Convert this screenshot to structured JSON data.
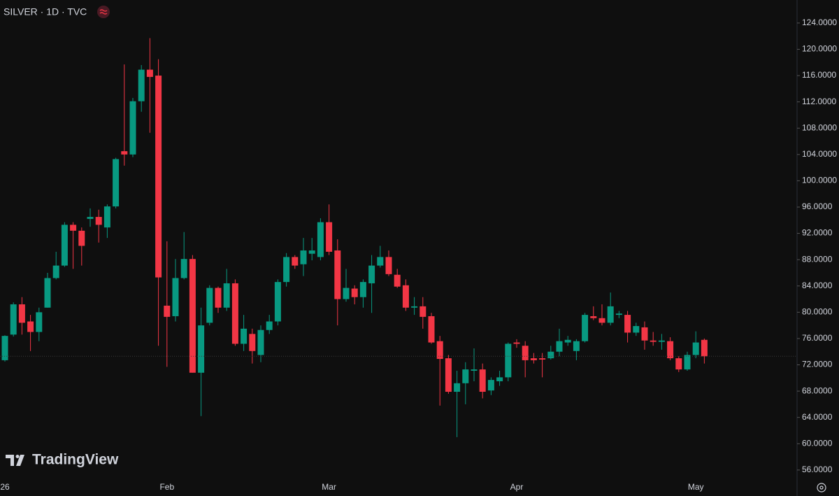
{
  "chart_data": {
    "type": "candlestick",
    "title": "SILVER · 1D · TVC",
    "watermark": "TradingView",
    "up_color": "#089981",
    "down_color": "#f23645",
    "categories": [
      "26",
      null,
      null,
      null,
      null,
      null,
      null,
      null,
      null,
      null,
      null,
      null,
      null,
      null,
      null,
      null,
      null,
      null,
      null,
      "Feb",
      null,
      null,
      null,
      null,
      null,
      null,
      null,
      null,
      null,
      null,
      null,
      null,
      null,
      null,
      null,
      null,
      null,
      null,
      "Mar",
      null,
      null,
      null,
      null,
      null,
      null,
      null,
      null,
      null,
      null,
      null,
      null,
      null,
      null,
      null,
      null,
      null,
      null,
      null,
      null,
      null,
      "Apr",
      null,
      null,
      null,
      null,
      null,
      null,
      null,
      null,
      null,
      null,
      null,
      null,
      null,
      null,
      null,
      null,
      null,
      null,
      null,
      null,
      "May",
      null
    ],
    "open": [
      72.7,
      76.6,
      81.2,
      78.6,
      77.0,
      80.7,
      85.2,
      87.1,
      93.3,
      92.4,
      94.2,
      94.5,
      92.9,
      96.1,
      104.5,
      104.0,
      112.1,
      116.9,
      116.0,
      81.0,
      79.4,
      85.2,
      88.1,
      70.8,
      78.4,
      83.7,
      80.7,
      84.4,
      75.2,
      76.7,
      73.5,
      77.3,
      78.6,
      84.6,
      88.4,
      87.3,
      88.9,
      88.4,
      93.7,
      89.4,
      82.0,
      83.6,
      82.3,
      84.4,
      87.1,
      88.4,
      85.7,
      84.1,
      80.7,
      80.9,
      79.4,
      75.6,
      73.0,
      67.9,
      69.2,
      71.1,
      71.3,
      68.1,
      69.5,
      70.1,
      75.4,
      74.9,
      73.0,
      73.0,
      73.0,
      74.0,
      75.4,
      74.1,
      75.6,
      79.4,
      79.1,
      78.4,
      79.6,
      79.6,
      76.9,
      77.7,
      75.7,
      75.5,
      75.6,
      73.0,
      71.3,
      73.5,
      75.8
    ],
    "high": [
      76.5,
      81.5,
      82.3,
      79.6,
      80.7,
      86.0,
      89.2,
      93.7,
      93.7,
      92.9,
      95.8,
      95.6,
      96.4,
      103.5,
      117.7,
      112.6,
      117.6,
      121.7,
      118.5,
      90.8,
      88.1,
      92.2,
      88.7,
      80.7,
      84.1,
      83.9,
      86.6,
      85.0,
      79.6,
      77.5,
      78.0,
      79.6,
      85.0,
      89.0,
      88.7,
      91.3,
      91.3,
      94.3,
      96.4,
      91.1,
      86.6,
      84.1,
      85.0,
      88.7,
      90.1,
      89.4,
      86.6,
      85.0,
      82.3,
      82.3,
      79.9,
      76.4,
      73.5,
      71.1,
      72.4,
      74.5,
      72.2,
      70.1,
      71.1,
      75.4,
      75.9,
      75.6,
      73.8,
      73.8,
      74.9,
      77.5,
      76.4,
      75.9,
      79.9,
      80.9,
      81.2,
      83.0,
      80.2,
      80.2,
      78.4,
      78.6,
      77.0,
      76.7,
      76.2,
      73.3,
      74.0,
      77.1,
      76.0
    ],
    "low": [
      72.5,
      76.3,
      76.6,
      74.1,
      75.6,
      80.7,
      85.0,
      86.9,
      86.6,
      87.1,
      93.0,
      90.6,
      91.3,
      95.8,
      102.3,
      103.6,
      110.5,
      107.3,
      74.9,
      71.7,
      78.6,
      85.0,
      70.8,
      64.2,
      78.0,
      79.9,
      80.2,
      74.9,
      74.1,
      72.2,
      72.4,
      76.7,
      78.0,
      83.9,
      86.6,
      85.5,
      87.9,
      87.9,
      88.7,
      78.0,
      81.6,
      81.2,
      80.7,
      79.9,
      86.8,
      85.5,
      83.7,
      80.2,
      79.6,
      77.5,
      75.2,
      65.8,
      67.6,
      61.0,
      66.0,
      69.5,
      66.9,
      67.4,
      68.8,
      69.5,
      74.6,
      70.1,
      72.2,
      70.1,
      72.8,
      73.3,
      74.9,
      72.7,
      75.4,
      78.8,
      78.0,
      78.0,
      79.1,
      75.4,
      76.4,
      74.3,
      74.9,
      74.3,
      72.7,
      70.9,
      71.1,
      73.0,
      72.2
    ],
    "close": [
      76.4,
      81.2,
      78.4,
      77.0,
      80.0,
      85.2,
      87.1,
      93.3,
      92.4,
      90.1,
      94.5,
      93.3,
      96.1,
      103.3,
      104.0,
      112.1,
      116.9,
      115.8,
      85.3,
      79.3,
      85.2,
      88.1,
      70.8,
      78.0,
      83.7,
      80.7,
      84.4,
      75.2,
      77.5,
      74.1,
      77.3,
      78.6,
      84.6,
      88.4,
      87.1,
      89.4,
      89.4,
      93.7,
      89.2,
      82.0,
      83.7,
      82.3,
      84.6,
      87.1,
      88.4,
      85.8,
      83.9,
      80.7,
      80.9,
      79.3,
      75.4,
      72.9,
      67.9,
      69.2,
      71.3,
      71.3,
      67.9,
      69.7,
      70.1,
      75.2,
      75.2,
      72.7,
      72.7,
      72.8,
      74.0,
      75.6,
      75.8,
      75.6,
      79.6,
      79.1,
      78.4,
      80.9,
      79.8,
      76.9,
      77.9,
      75.7,
      75.5,
      75.7,
      73.0,
      71.3,
      73.5,
      75.4,
      73.3
    ],
    "ylim": [
      54.6,
      127.5
    ],
    "yticks": [
      {
        "value": 56,
        "label": "56.0000"
      },
      {
        "value": 60,
        "label": "60.0000"
      },
      {
        "value": 64,
        "label": "64.0000"
      },
      {
        "value": 68,
        "label": "68.0000"
      },
      {
        "value": 72,
        "label": "72.0000"
      },
      {
        "value": 76,
        "label": "76.0000"
      },
      {
        "value": 80,
        "label": "80.0000"
      },
      {
        "value": 84,
        "label": "84.0000"
      },
      {
        "value": 88,
        "label": "88.0000"
      },
      {
        "value": 92,
        "label": "92.0000"
      },
      {
        "value": 96,
        "label": "96.0000"
      },
      {
        "value": 100,
        "label": "100.0000"
      },
      {
        "value": 104,
        "label": "104.0000"
      },
      {
        "value": 108,
        "label": "108.0000"
      },
      {
        "value": 112,
        "label": "112.0000"
      },
      {
        "value": 116,
        "label": "116.0000"
      },
      {
        "value": 120,
        "label": "120.0000"
      },
      {
        "value": 124,
        "label": "124.0000"
      }
    ]
  }
}
